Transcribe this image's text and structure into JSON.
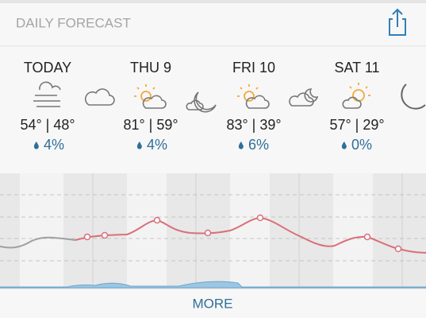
{
  "header": {
    "title": "DAILY FORECAST"
  },
  "days": [
    {
      "label": "TODAY",
      "temps": "54° | 48°",
      "precip": "4%"
    },
    {
      "label": "THU 9",
      "temps": "81° | 59°",
      "precip": "4%"
    },
    {
      "label": "FRI 10",
      "temps": "83° | 39°",
      "precip": "6%"
    },
    {
      "label": "SAT 11",
      "temps": "57° | 29°",
      "precip": "0%"
    }
  ],
  "footer": {
    "button": "MORE"
  }
}
